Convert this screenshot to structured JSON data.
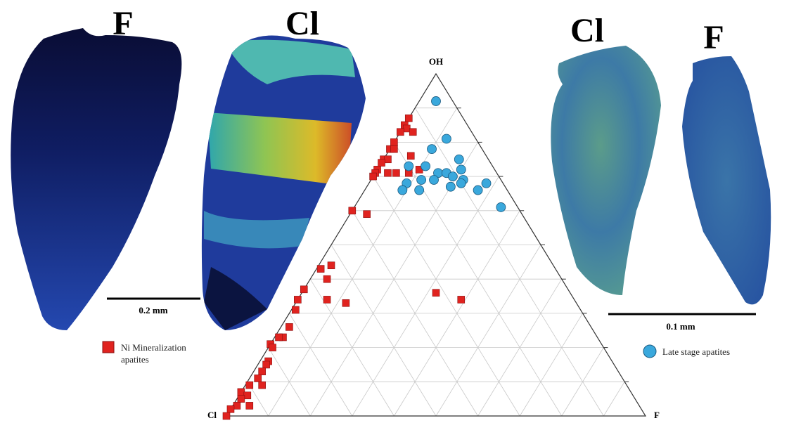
{
  "panels": [
    {
      "label": "F"
    },
    {
      "label": "Cl"
    },
    {
      "label": "Cl"
    },
    {
      "label": "F"
    }
  ],
  "scale_bars": [
    {
      "label": "0.2 mm"
    },
    {
      "label": "0.1 mm"
    }
  ],
  "chart_data": {
    "type": "ternary",
    "vertex_labels": {
      "top": "OH",
      "left": "Cl",
      "right": "F"
    },
    "ticks": [
      0.1,
      0.2,
      0.3,
      0.4,
      0.5,
      0.6,
      0.7,
      0.8,
      0.9
    ],
    "grid": true,
    "series": [
      {
        "name": "Ni Mineralization apatites",
        "color": "#e0231f",
        "marker": "square",
        "oh": [
          0.87,
          0.85,
          0.84,
          0.83,
          0.83,
          0.8,
          0.78,
          0.78,
          0.75,
          0.75,
          0.74,
          0.72,
          0.71,
          0.71,
          0.71,
          0.7,
          0.76,
          0.72,
          0.71,
          0.6,
          0.59,
          0.43,
          0.44,
          0.4,
          0.37,
          0.34,
          0.33,
          0.36,
          0.34,
          0.34,
          0.31,
          0.26,
          0.23,
          0.23,
          0.21,
          0.2,
          0.16,
          0.15,
          0.13,
          0.11,
          0.09,
          0.09,
          0.07,
          0.06,
          0.05,
          0.03,
          0.02,
          0.03,
          0
        ],
        "f": [
          0,
          0,
          0.01,
          0.03,
          0,
          0,
          0,
          0.01,
          0,
          0.01,
          0,
          0,
          0,
          0.03,
          0.05,
          0,
          0.06,
          0.1,
          0.08,
          0,
          0.04,
          0.01,
          0.03,
          0.04,
          0,
          0.07,
          0.12,
          0.32,
          0.39,
          0,
          0.01,
          0.02,
          0.02,
          0.01,
          0,
          0.01,
          0.02,
          0.02,
          0.02,
          0.02,
          0.01,
          0.04,
          0,
          0.02,
          0.01,
          0.01,
          0,
          0.04,
          0
        ]
      },
      {
        "name": "Late stage apatites",
        "color": "#3aa8dc",
        "marker": "circle",
        "oh": [
          0.92,
          0.81,
          0.78,
          0.75,
          0.73,
          0.73,
          0.71,
          0.72,
          0.71,
          0.69,
          0.7,
          0.69,
          0.69,
          0.68,
          0.66,
          0.67,
          0.66,
          0.66,
          0.68,
          0.68,
          0.61
        ],
        "f": [
          0.04,
          0.12,
          0.1,
          0.18,
          0.07,
          0.11,
          0.15,
          0.2,
          0.17,
          0.12,
          0.19,
          0.22,
          0.15,
          0.09,
          0.09,
          0.2,
          0.13,
          0.27,
          0.28,
          0.22,
          0.35
        ]
      }
    ]
  }
}
